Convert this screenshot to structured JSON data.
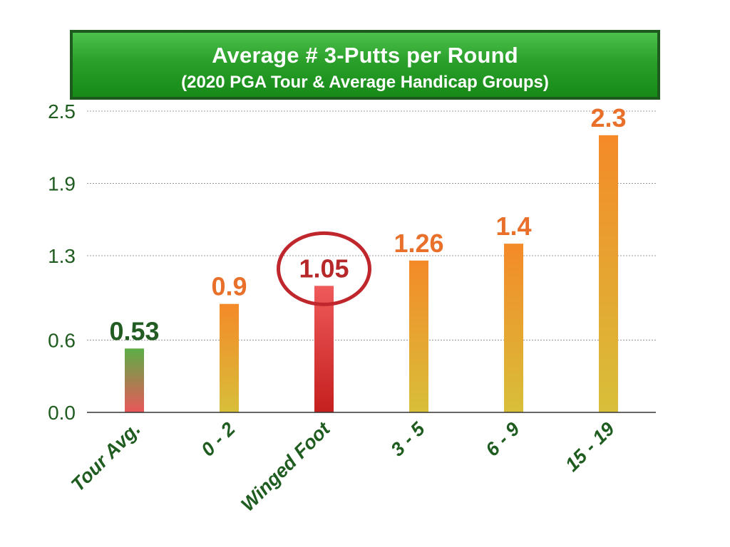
{
  "title": "Average # 3-Putts per Round",
  "subtitle": "(2020 PGA Tour & Average Handicap Groups)",
  "chart_data": {
    "type": "bar",
    "title": "Average # 3-Putts per Round",
    "subtitle": "(2020 PGA Tour & Average Handicap Groups)",
    "xlabel": "",
    "ylabel": "",
    "categories": [
      "Tour Avg.",
      "0 - 2",
      "Winged Foot",
      "3 - 5",
      "6 - 9",
      "15 - 19"
    ],
    "values": [
      0.53,
      0.9,
      1.05,
      1.26,
      1.4,
      2.3
    ],
    "data_labels": [
      "0.53",
      "0.9",
      "1.05",
      "1.26",
      "1.4",
      "2.3"
    ],
    "ylim": [
      0,
      2.5
    ],
    "yticks": [
      0.0,
      0.6,
      1.3,
      1.9,
      2.5
    ],
    "ytick_labels": [
      "0.0",
      "0.6",
      "1.3",
      "1.9",
      "2.5"
    ],
    "grid": true,
    "legend": "none",
    "highlight": "Winged Foot",
    "colors": {
      "tour_avg_top": "#5cae46",
      "tour_avg_bottom": "#e9575a",
      "handicap_top": "#f48a28",
      "handicap_bottom": "#d8bf3a",
      "winged_foot_top": "#ef5a5a",
      "winged_foot_bottom": "#c51f1f",
      "tour_avg_label": "#235c23",
      "handicap_label": "#e8702a",
      "winged_foot_label": "#b7282a",
      "highlight_circle": "#c0272d",
      "axis_text": "#1f5c1f",
      "title_banner": "#2aa02a"
    }
  }
}
